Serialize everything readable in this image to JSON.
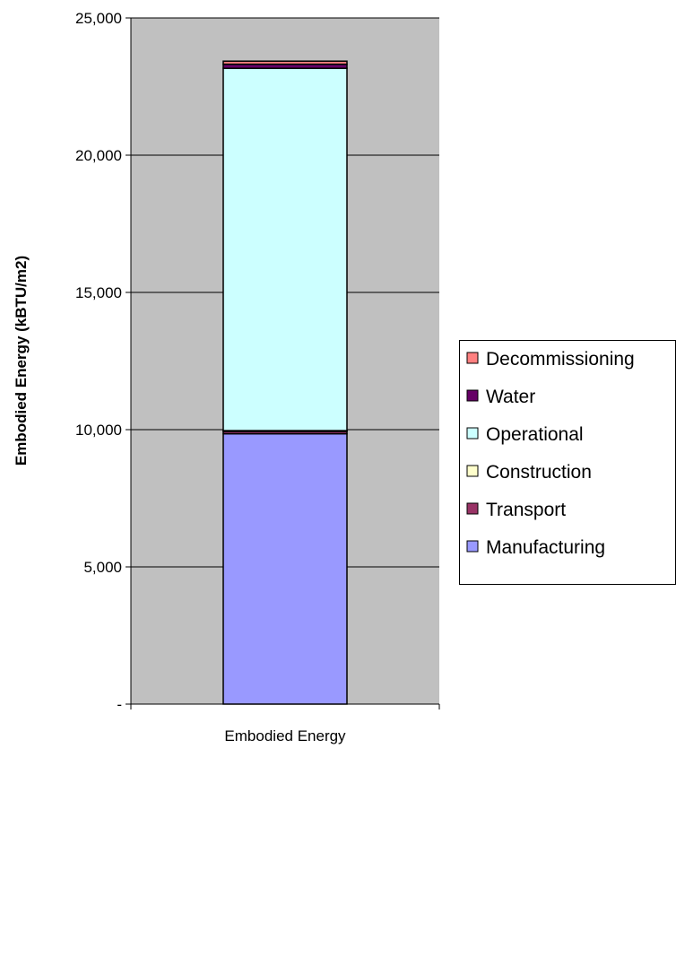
{
  "chart_data": {
    "type": "bar",
    "stacked": true,
    "categories": [
      "Embodied Energy"
    ],
    "ylabel": "Embodied Energy (kBTU/m2)",
    "ylim": [
      0,
      25000
    ],
    "yticks": [
      0,
      5000,
      10000,
      15000,
      20000,
      25000
    ],
    "ytick_labels": [
      "-",
      "5,000",
      "10,000",
      "15,000",
      "20,000",
      "25,000"
    ],
    "grid": true,
    "legend_position": "right",
    "series": [
      {
        "name": "Manufacturing",
        "values": [
          9850
        ],
        "color": "#9999FF"
      },
      {
        "name": "Transport",
        "values": [
          100
        ],
        "color": "#993366"
      },
      {
        "name": "Construction",
        "values": [
          15
        ],
        "color": "#FFFFCC"
      },
      {
        "name": "Operational",
        "values": [
          13200
        ],
        "color": "#CCFFFF"
      },
      {
        "name": "Water",
        "values": [
          150
        ],
        "color": "#660066"
      },
      {
        "name": "Decommissioning",
        "values": [
          110
        ],
        "color": "#FF8080"
      }
    ],
    "legend_order": [
      "Decommissioning",
      "Water",
      "Operational",
      "Construction",
      "Transport",
      "Manufacturing"
    ],
    "plot_background": "#C0C0C0"
  }
}
